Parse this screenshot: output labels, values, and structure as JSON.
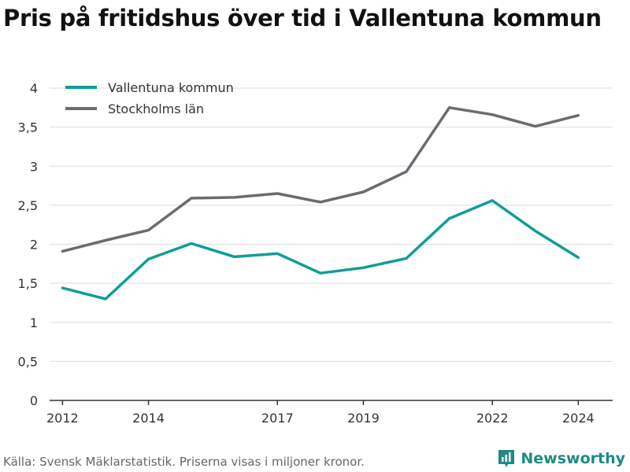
{
  "title": "Pris på fritidshus över tid i Vallentuna kommun",
  "footer": "Källa: Svensk Mäklarstatistik. Priserna visas i miljoner kronor.",
  "brand": "Newsworthy",
  "colors": {
    "vallentuna": "#0f9e97",
    "stockholm": "#6b6b72",
    "grid": "#dddddd",
    "axis": "#333333"
  },
  "chart_data": {
    "type": "line",
    "title": "Pris på fritidshus över tid i Vallentuna kommun",
    "xlabel": "",
    "ylabel": "",
    "xlim": [
      2011.7,
      2024.8
    ],
    "ylim": [
      0,
      4
    ],
    "x_ticks": [
      2012,
      2014,
      2017,
      2019,
      2022,
      2024
    ],
    "y_ticks": [
      0,
      0.5,
      1,
      1.5,
      2,
      2.5,
      3,
      3.5,
      4
    ],
    "y_tick_labels": [
      "0",
      "0,5",
      "1",
      "1,5",
      "2",
      "2,5",
      "3",
      "3,5",
      "4"
    ],
    "grid": true,
    "legend": "top-left",
    "x": [
      2012,
      2013,
      2014,
      2015,
      2016,
      2017,
      2018,
      2019,
      2020,
      2021,
      2022,
      2023,
      2024
    ],
    "series": [
      {
        "name": "Vallentuna kommun",
        "values": [
          1.44,
          1.3,
          1.81,
          2.01,
          1.84,
          1.88,
          1.63,
          1.7,
          1.82,
          2.33,
          2.56,
          2.17,
          1.83
        ]
      },
      {
        "name": "Stockholms län",
        "values": [
          1.91,
          2.05,
          2.18,
          2.59,
          2.6,
          2.65,
          2.54,
          2.67,
          2.93,
          3.75,
          3.66,
          3.51,
          3.65
        ]
      }
    ]
  }
}
